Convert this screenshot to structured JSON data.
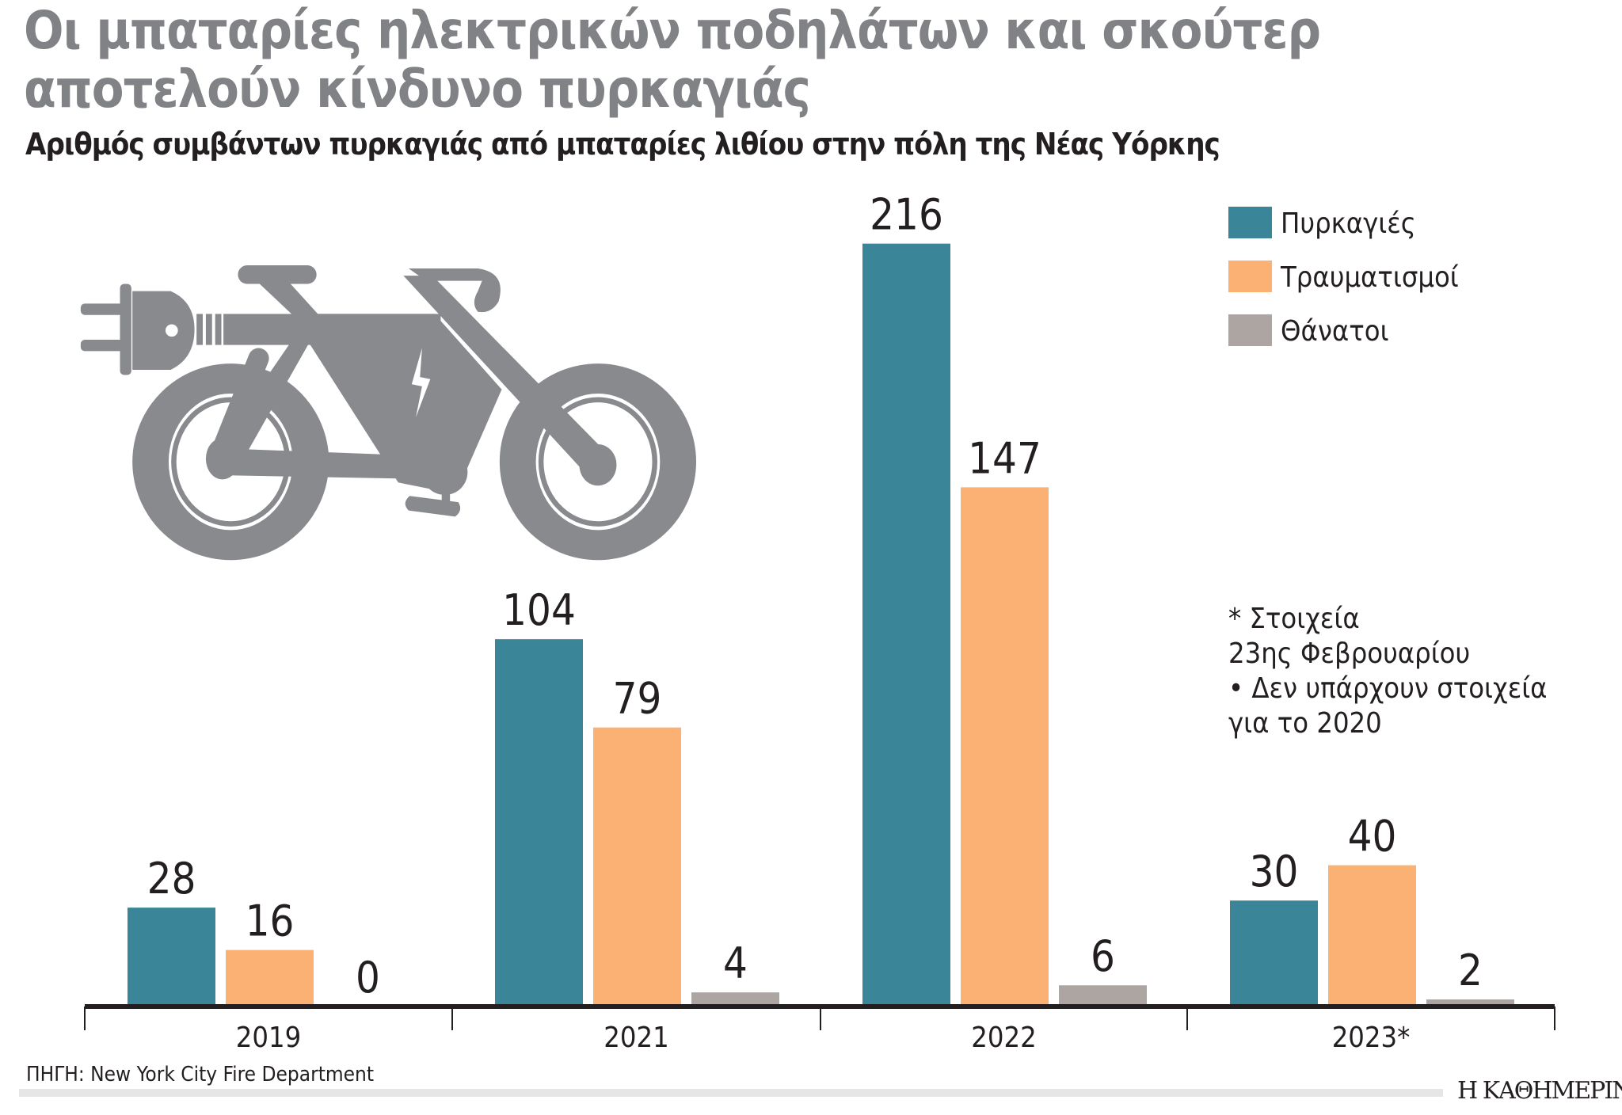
{
  "header": {
    "title_line1": "Οι μπαταρίες ηλεκτρικών ποδηλάτων και σκούτερ",
    "title_line2": "αποτελούν κίνδυνο πυρκαγιάς",
    "subtitle": "Αριθμός συμβάντων πυρκαγιάς από μπαταρίες λιθίου στην πόλη της Νέας Υόρκης"
  },
  "chart_data": {
    "type": "bar",
    "title": "Οι μπαταρίες ηλεκτρικών ποδηλάτων και σκούτερ αποτελούν κίνδυνο πυρκαγιάς",
    "subtitle": "Αριθμός συμβάντων πυρκαγιάς από μπαταρίες λιθίου στην πόλη της Νέας Υόρκης",
    "categories": [
      "2019",
      "2021",
      "2022",
      "2023*"
    ],
    "series": [
      {
        "name": "Πυρκαγιές",
        "values": [
          28,
          104,
          216,
          30
        ],
        "color": "#3a8598"
      },
      {
        "name": "Τραυματισμοί",
        "values": [
          16,
          79,
          147,
          40
        ],
        "color": "#fbb173"
      },
      {
        "name": "Θάνατοι",
        "values": [
          0,
          4,
          6,
          2
        ],
        "color": "#aca5a2"
      }
    ],
    "ylim": [
      0,
      216
    ],
    "grid": false,
    "legend": "top-right",
    "data_labels": true
  },
  "notes": [
    "* Στοιχεία",
    "23ης Φεβρουαρίου",
    "• Δεν υπάρχουν στοιχεία",
    "για το 2020"
  ],
  "footer": {
    "source": "ΠΗΓΗ: New York City Fire Department",
    "logo": "Η ΚΑΘΗΜΕΡΙΝΗ"
  },
  "colors": {
    "title": "#808285",
    "icon": "#898a8d",
    "axis": "#231f20"
  },
  "icon": "electric-bike-with-plug-icon"
}
